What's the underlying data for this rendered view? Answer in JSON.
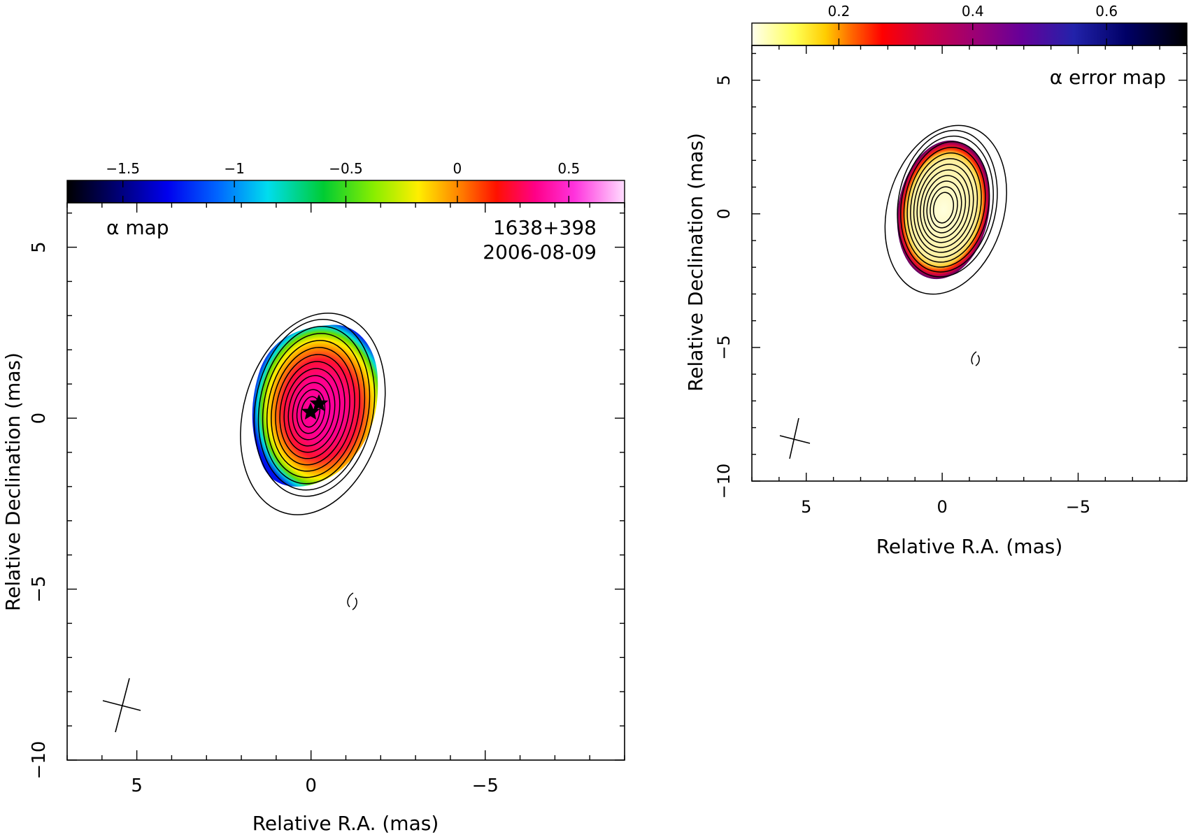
{
  "figure": {
    "panels": [
      "alpha-map",
      "alpha-error-map"
    ]
  },
  "chart_data": [
    {
      "type": "heatmap",
      "name": "alpha-map",
      "title": "α map",
      "source_label": "1638+398",
      "date_label": "2006-08-09",
      "xlabel": "Relative R.A. (mas)",
      "ylabel": "Relative Declination (mas)",
      "xlim": [
        7,
        -9
      ],
      "ylim": [
        -10,
        6.3
      ],
      "x_ticks": [
        5,
        0,
        -5
      ],
      "x_tick_labels": [
        "5",
        "0",
        "−5"
      ],
      "y_ticks": [
        -10,
        -5,
        0,
        5
      ],
      "y_tick_labels": [
        "−10",
        "−5",
        "0",
        "5"
      ],
      "colorbar": {
        "range": [
          -1.75,
          0.75
        ],
        "ticks": [
          -1.5,
          -1,
          -0.5,
          0,
          0.5
        ],
        "tick_labels": [
          "−1.5",
          "−1",
          "−0.5",
          "0",
          "0.5"
        ],
        "colormap": "rainbow (black-blue-cyan-green-yellow-red-magenta-white)"
      },
      "core_value": 0.55,
      "edge_value": -1.4,
      "emission_center": [
        0,
        0
      ],
      "contour_count": 12,
      "markers": [
        {
          "shape": "star",
          "x": 0,
          "y": 0
        },
        {
          "shape": "star",
          "x": -0.25,
          "y": 0.2
        }
      ],
      "grid": false
    },
    {
      "type": "heatmap",
      "name": "alpha-error-map",
      "title": "α error map",
      "xlabel": "Relative R.A. (mas)",
      "ylabel": "Relative Declination (mas)",
      "xlim": [
        7,
        -9
      ],
      "ylim": [
        -10,
        6.3
      ],
      "x_ticks": [
        5,
        0,
        -5
      ],
      "x_tick_labels": [
        "5",
        "0",
        "−5"
      ],
      "y_ticks": [
        -10,
        -5,
        0,
        5
      ],
      "y_tick_labels": [
        "−10",
        "−5",
        "0",
        "5"
      ],
      "colorbar": {
        "range": [
          0.07,
          0.72
        ],
        "ticks": [
          0.2,
          0.4,
          0.6
        ],
        "tick_labels": [
          "0.2",
          "0.4",
          "0.6"
        ],
        "colormap": "heat (white-yellow-red-purple-blue-black)"
      },
      "core_value": 0.1,
      "edge_value": 0.35,
      "emission_center": [
        0,
        0
      ],
      "contour_count": 12,
      "grid": false
    }
  ]
}
